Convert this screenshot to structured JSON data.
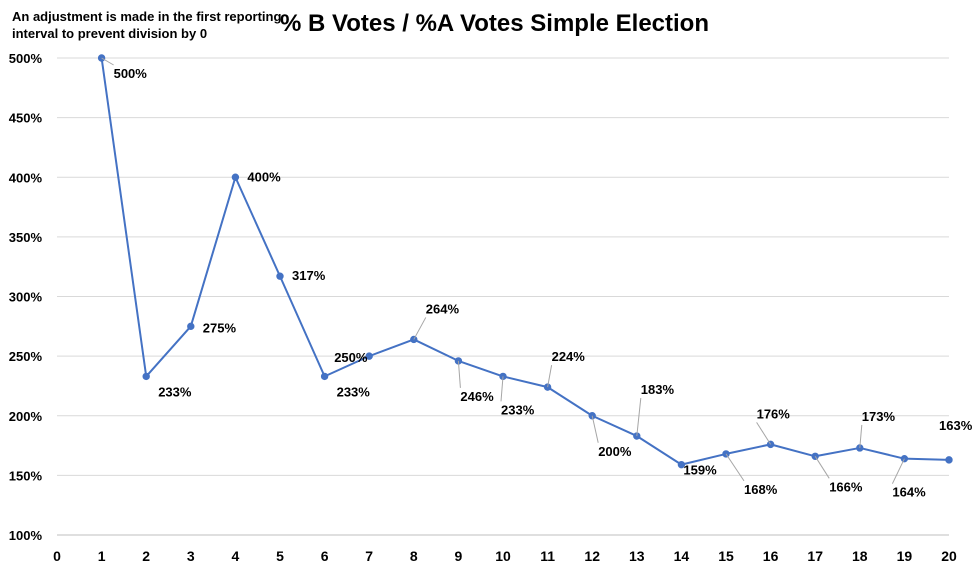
{
  "chart_data": {
    "type": "line",
    "title": "% B Votes / %A Votes Simple Election",
    "annotation": "An adjustment is made in the first reporting interval to prevent division by 0",
    "xlabel": "",
    "ylabel": "",
    "xlim": [
      0,
      20
    ],
    "ylim": [
      100,
      500
    ],
    "x_ticks": [
      "0",
      "1",
      "2",
      "3",
      "4",
      "5",
      "6",
      "7",
      "8",
      "9",
      "10",
      "11",
      "12",
      "13",
      "14",
      "15",
      "16",
      "17",
      "18",
      "19",
      "20"
    ],
    "y_ticks": [
      "100%",
      "150%",
      "200%",
      "250%",
      "300%",
      "350%",
      "400%",
      "450%",
      "500%"
    ],
    "grid": true,
    "legend": "none",
    "series": [
      {
        "color": "#4472c4",
        "x": [
          1,
          2,
          3,
          4,
          5,
          6,
          7,
          8,
          9,
          10,
          11,
          12,
          13,
          14,
          15,
          16,
          17,
          18,
          19,
          20
        ],
        "values": [
          500,
          233,
          275,
          400,
          317,
          233,
          250,
          264,
          246,
          233,
          224,
          200,
          183,
          159,
          168,
          176,
          166,
          173,
          164,
          163
        ],
        "labels": [
          "500%",
          "233%",
          "275%",
          "400%",
          "317%",
          "233%",
          "250%",
          "264%",
          "246%",
          "233%",
          "224%",
          "200%",
          "183%",
          "159%",
          "168%",
          "176%",
          "166%",
          "173%",
          "164%",
          "163%"
        ]
      }
    ]
  }
}
